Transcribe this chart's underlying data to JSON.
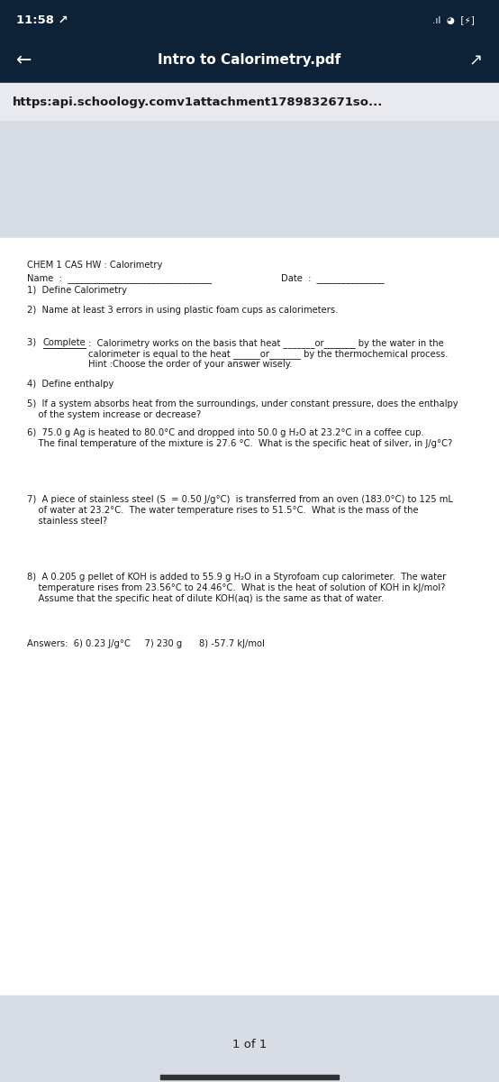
{
  "status_bar_bg": "#0d2137",
  "status_time": "11:58 ↗",
  "nav_bar_bg": "#0d2137",
  "nav_title": "Intro to Calorimetry.pdf",
  "url_bar_bg": "#e8eaf0",
  "url_text": "https:api.schoology.comv1attachment1789832671so...",
  "paper_bg": "#ffffff",
  "gray_bg": "#d8dce5",
  "header_text": "CHEM 1 CAS HW : Calorimetry",
  "name_line": "Name  :  ________________________________",
  "date_line": "Date  :  _______________",
  "q1": "1)  Define Calorimetry",
  "q2": "2)  Name at least 3 errors in using plastic foam cups as calorimeters.",
  "q3_prefix": "3)  ",
  "q3_complete": "Complete",
  "q3_rest": " :  Calorimetry works on the basis that heat _______or_______ by the water in the",
  "q3_line2": "calorimeter is equal to the heat ______or_______ by the thermochemical process.",
  "q3_hint": "Hint :Choose the order of your answer wisely.",
  "q4": "4)  Define enthalpy",
  "q5_line1": "5)  If a system absorbs heat from the surroundings, under constant pressure, does the enthalpy",
  "q5_line2": "    of the system increase or decrease?",
  "q6_line1": "6)  75.0 g Ag is heated to 80.0°C and dropped into 50.0 g H₂O at 23.2°C in a coffee cup.",
  "q6_line2": "    The final temperature of the mixture is 27.6 °C.  What is the specific heat of silver, in J/g°C?",
  "q7_line1": "7)  A piece of stainless steel (S  = 0.50 J/g°C)  is transferred from an oven (183.0°C) to 125 mL",
  "q7_line2": "    of water at 23.2°C.  The water temperature rises to 51.5°C.  What is the mass of the",
  "q7_line3": "    stainless steel?",
  "q8_line1": "8)  A 0.205 g pellet of KOH is added to 55.9 g H₂O in a Styrofoam cup calorimeter.  The water",
  "q8_line2": "    temperature rises from 23.56°C to 24.46°C.  What is the heat of solution of KOH in kJ/mol?",
  "q8_line3": "    Assume that the specific heat of dilute KOH(aq) is the same as that of water.",
  "answers": "Answers:  6) 0.23 J/g°C     7) 230 g      8) -57.7 kJ/mol",
  "page_indicator": "1 of 1",
  "text_dark": "#1a1a1a",
  "text_medium": "#333333"
}
